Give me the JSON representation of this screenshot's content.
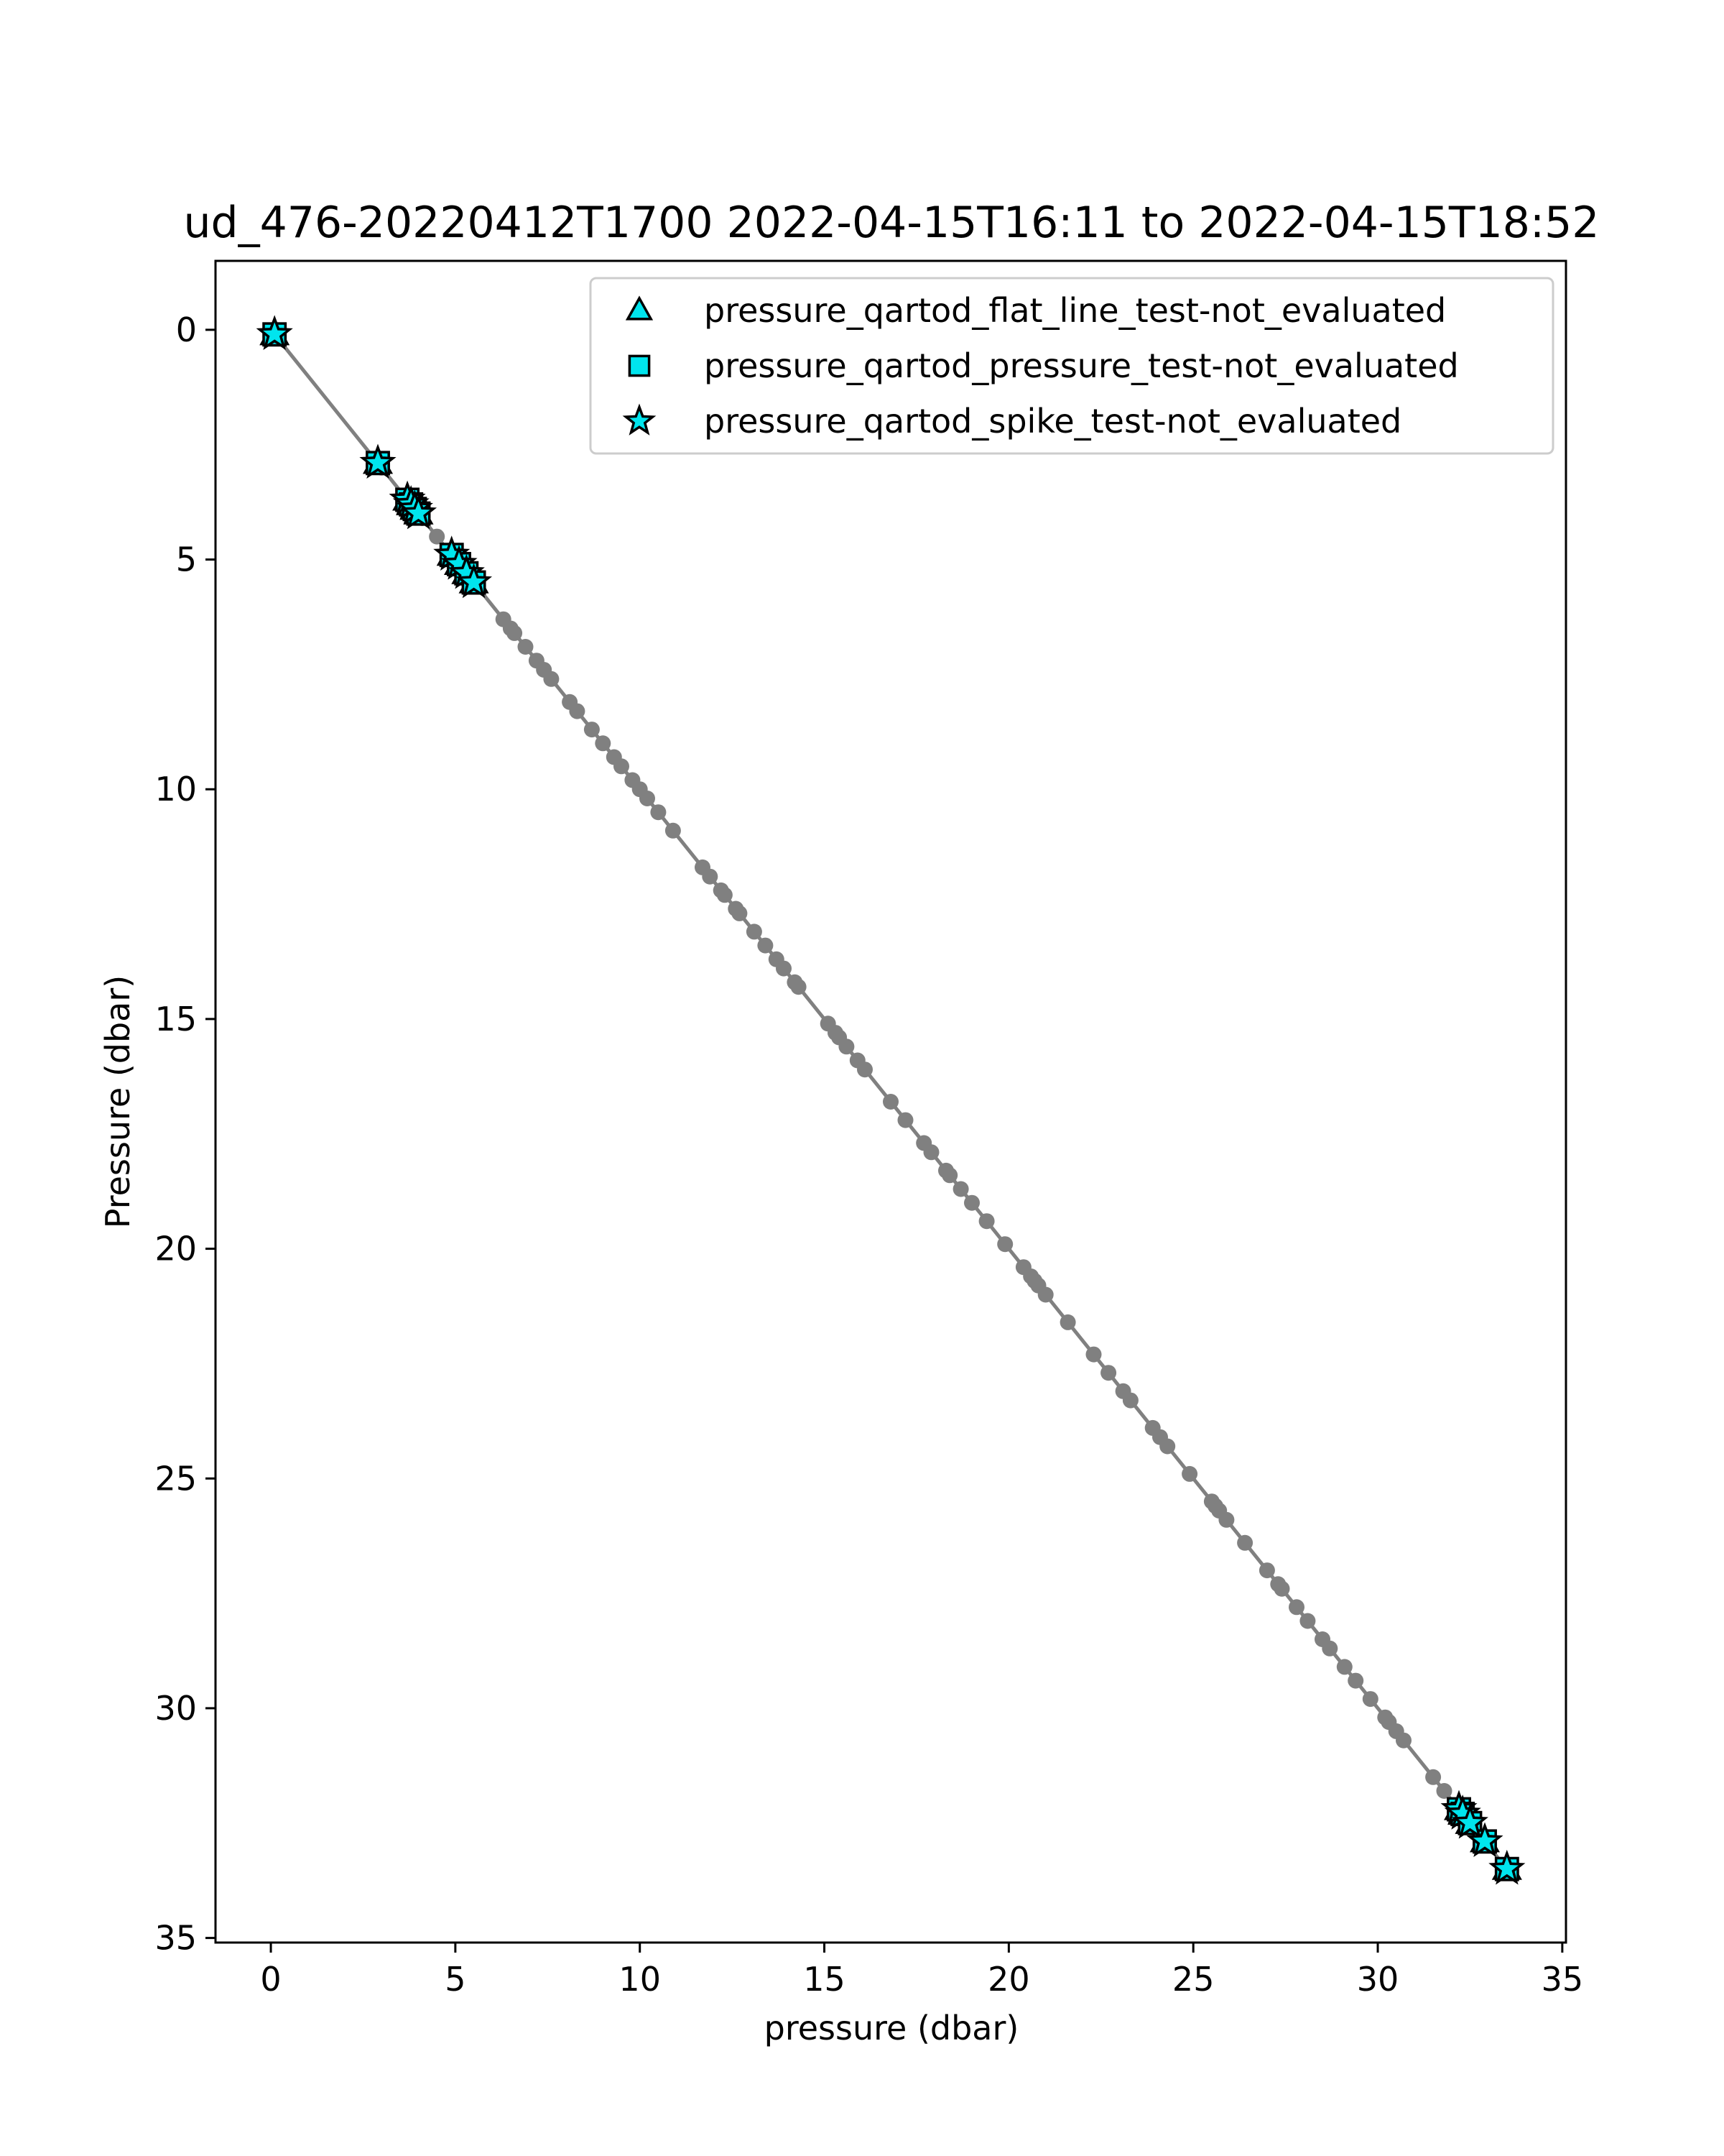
{
  "chart_data": {
    "type": "scatter",
    "title": "ud_476-20220412T1700 2022-04-15T16:11 to 2022-04-15T18:52",
    "xlabel": "pressure (dbar)",
    "ylabel": "Pressure (dbar)",
    "xlim": [
      -1.5,
      35.1
    ],
    "ylim": [
      35.1,
      -1.5
    ],
    "y_inverted": true,
    "grid": false,
    "legend_position": "top-right",
    "x_ticks": [
      0,
      5,
      10,
      15,
      20,
      25,
      30,
      35
    ],
    "y_ticks": [
      0,
      5,
      10,
      15,
      20,
      25,
      30,
      35
    ],
    "line_color": "#808080",
    "marker_fill": "#00e5ee",
    "marker_edge": "#000000",
    "profile_points": [
      0.1,
      0.15,
      2.9,
      3.0,
      3.7,
      3.8,
      3.9,
      4.0,
      4.1,
      4.5,
      4.9,
      5.0,
      5.2,
      5.3,
      5.5,
      6.3,
      6.5,
      6.6,
      6.9,
      7.2,
      7.4,
      7.6,
      8.1,
      8.3,
      8.7,
      9.0,
      9.3,
      9.5,
      9.8,
      10.0,
      10.2,
      10.5,
      10.9,
      11.7,
      11.9,
      12.2,
      12.3,
      12.6,
      12.7,
      13.1,
      13.4,
      13.7,
      13.9,
      14.2,
      14.3,
      15.1,
      15.3,
      15.4,
      15.6,
      15.9,
      16.1,
      16.8,
      17.2,
      17.7,
      17.9,
      18.3,
      18.4,
      18.7,
      19.0,
      19.4,
      19.9,
      20.4,
      20.6,
      20.7,
      20.8,
      21.0,
      21.6,
      22.3,
      22.7,
      23.1,
      23.3,
      23.9,
      24.1,
      24.3,
      24.9,
      25.5,
      25.6,
      25.7,
      25.9,
      26.4,
      27.0,
      27.3,
      27.4,
      27.8,
      28.1,
      28.5,
      28.7,
      29.1,
      29.4,
      29.8,
      30.2,
      30.3,
      30.5,
      30.7,
      31.5,
      31.8
    ],
    "series": [
      {
        "name": "pressure_qartod_flat_line_test-not_evaluated",
        "marker": "triangle",
        "points": [
          0.1,
          2.9,
          3.7,
          3.8,
          3.9,
          4.0,
          4.9,
          5.1,
          5.3,
          5.5,
          32.2,
          32.3,
          32.5,
          32.9,
          33.5
        ]
      },
      {
        "name": "pressure_qartod_pressure_test-not_evaluated",
        "marker": "square",
        "points": [
          0.1,
          2.9,
          3.7,
          3.8,
          3.9,
          4.0,
          4.9,
          5.1,
          5.3,
          5.5,
          32.2,
          32.3,
          32.5,
          32.9,
          33.5
        ]
      },
      {
        "name": "pressure_qartod_spike_test-not_evaluated",
        "marker": "star",
        "points": [
          0.1,
          2.9,
          3.7,
          3.8,
          3.9,
          4.0,
          4.9,
          5.1,
          5.3,
          5.5,
          32.2,
          32.3,
          32.5,
          32.9,
          33.5
        ]
      }
    ]
  }
}
